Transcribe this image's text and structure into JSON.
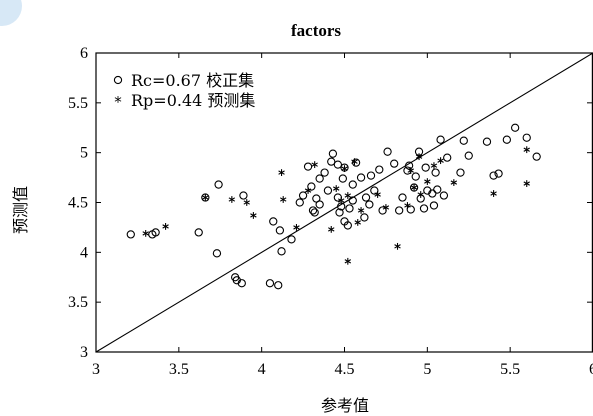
{
  "chart_data": {
    "type": "scatter",
    "title": "factors",
    "xlabel": "参考值",
    "ylabel": "预测值",
    "xlim": [
      3,
      6
    ],
    "ylim": [
      3,
      6
    ],
    "xticks": [
      "3",
      "3.5",
      "4",
      "4.5",
      "5",
      "5.5",
      "6"
    ],
    "yticks": [
      "3",
      "3.5",
      "4",
      "4.5",
      "5",
      "5.5",
      "6"
    ],
    "grid": false,
    "legend_position": "top-left",
    "reference_line": {
      "x": [
        3,
        6
      ],
      "y": [
        3,
        6
      ]
    },
    "series": [
      {
        "name": "Rc=0.67 校正集",
        "marker": "circle",
        "points": [
          [
            3.21,
            4.18
          ],
          [
            3.34,
            4.18
          ],
          [
            3.36,
            4.2
          ],
          [
            3.62,
            4.2
          ],
          [
            3.66,
            4.55
          ],
          [
            3.74,
            4.68
          ],
          [
            3.73,
            3.99
          ],
          [
            3.84,
            3.75
          ],
          [
            3.85,
            3.72
          ],
          [
            3.88,
            3.69
          ],
          [
            3.89,
            4.57
          ],
          [
            4.05,
            3.69
          ],
          [
            4.07,
            4.31
          ],
          [
            4.1,
            3.67
          ],
          [
            4.11,
            4.22
          ],
          [
            4.12,
            4.01
          ],
          [
            4.18,
            4.13
          ],
          [
            4.23,
            4.5
          ],
          [
            4.25,
            4.57
          ],
          [
            4.28,
            4.86
          ],
          [
            4.3,
            4.66
          ],
          [
            4.31,
            4.42
          ],
          [
            4.32,
            4.4
          ],
          [
            4.33,
            4.54
          ],
          [
            4.35,
            4.48
          ],
          [
            4.35,
            4.74
          ],
          [
            4.38,
            4.8
          ],
          [
            4.4,
            4.62
          ],
          [
            4.42,
            4.91
          ],
          [
            4.43,
            4.99
          ],
          [
            4.46,
            4.55
          ],
          [
            4.46,
            4.88
          ],
          [
            4.47,
            4.4
          ],
          [
            4.48,
            4.46
          ],
          [
            4.49,
            4.74
          ],
          [
            4.5,
            4.31
          ],
          [
            4.5,
            4.85
          ],
          [
            4.52,
            4.27
          ],
          [
            4.53,
            4.44
          ],
          [
            4.55,
            4.52
          ],
          [
            4.55,
            4.68
          ],
          [
            4.57,
            4.9
          ],
          [
            4.6,
            4.75
          ],
          [
            4.62,
            4.35
          ],
          [
            4.63,
            4.55
          ],
          [
            4.65,
            4.48
          ],
          [
            4.66,
            4.77
          ],
          [
            4.68,
            4.62
          ],
          [
            4.71,
            4.83
          ],
          [
            4.73,
            4.42
          ],
          [
            4.76,
            5.01
          ],
          [
            4.8,
            4.89
          ],
          [
            4.83,
            4.42
          ],
          [
            4.85,
            4.55
          ],
          [
            4.88,
            4.82
          ],
          [
            4.89,
            4.87
          ],
          [
            4.9,
            4.43
          ],
          [
            4.92,
            4.65
          ],
          [
            4.93,
            4.76
          ],
          [
            4.95,
            5.01
          ],
          [
            4.96,
            4.54
          ],
          [
            4.98,
            4.44
          ],
          [
            4.99,
            4.85
          ],
          [
            5.0,
            4.62
          ],
          [
            5.03,
            4.59
          ],
          [
            5.04,
            4.47
          ],
          [
            5.05,
            4.8
          ],
          [
            5.06,
            4.63
          ],
          [
            5.08,
            5.13
          ],
          [
            5.1,
            4.57
          ],
          [
            5.12,
            4.95
          ],
          [
            5.2,
            4.8
          ],
          [
            5.22,
            5.12
          ],
          [
            5.25,
            4.97
          ],
          [
            5.36,
            5.11
          ],
          [
            5.4,
            4.77
          ],
          [
            5.43,
            4.79
          ],
          [
            5.48,
            5.13
          ],
          [
            5.53,
            5.25
          ],
          [
            5.6,
            5.15
          ],
          [
            5.66,
            4.96
          ]
        ]
      },
      {
        "name": "Rp=0.44 预测集",
        "marker": "asterisk",
        "points": [
          [
            3.3,
            4.19
          ],
          [
            3.42,
            4.26
          ],
          [
            3.66,
            4.55
          ],
          [
            3.82,
            4.53
          ],
          [
            3.91,
            4.5
          ],
          [
            3.95,
            4.37
          ],
          [
            4.12,
            4.8
          ],
          [
            4.13,
            4.53
          ],
          [
            4.21,
            4.25
          ],
          [
            4.28,
            4.62
          ],
          [
            4.32,
            4.88
          ],
          [
            4.42,
            4.23
          ],
          [
            4.45,
            4.64
          ],
          [
            4.48,
            4.52
          ],
          [
            4.5,
            4.84
          ],
          [
            4.52,
            3.91
          ],
          [
            4.52,
            4.57
          ],
          [
            4.56,
            4.91
          ],
          [
            4.58,
            4.3
          ],
          [
            4.6,
            4.42
          ],
          [
            4.7,
            4.58
          ],
          [
            4.75,
            4.45
          ],
          [
            4.82,
            4.06
          ],
          [
            4.9,
            4.82
          ],
          [
            4.92,
            4.65
          ],
          [
            4.95,
            4.96
          ],
          [
            5.0,
            4.71
          ],
          [
            5.04,
            4.87
          ],
          [
            5.08,
            4.92
          ],
          [
            5.16,
            4.7
          ],
          [
            5.4,
            4.59
          ],
          [
            5.6,
            4.69
          ],
          [
            5.6,
            5.03
          ],
          [
            4.88,
            4.47
          ],
          [
            4.96,
            4.58
          ]
        ]
      }
    ]
  }
}
